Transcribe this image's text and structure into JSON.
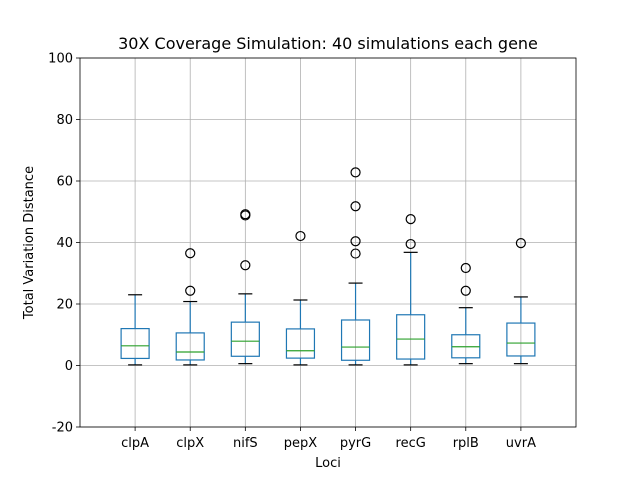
{
  "chart_data": {
    "type": "box",
    "title": "30X Coverage Simulation: 40 simulations each gene",
    "xlabel": "Loci",
    "ylabel": "Total Variation Distance",
    "ylim": [
      -20,
      100
    ],
    "yticks": [
      -20,
      0,
      20,
      40,
      60,
      80,
      100
    ],
    "grid": true,
    "colors": {
      "box": "#1f77b4",
      "median": "#2ca02c",
      "whisker": "#1f77b4",
      "cap": "#000000",
      "grid": "#b0b0b0",
      "flier": "#000000"
    },
    "categories": [
      "clpA",
      "clpX",
      "nifS",
      "pepX",
      "pyrG",
      "recG",
      "rplB",
      "uvrA"
    ],
    "boxes": [
      {
        "label": "clpA",
        "whisker_low": 0.2,
        "q1": 2.3,
        "median": 6.4,
        "q3": 12.0,
        "whisker_high": 23.0,
        "outliers": []
      },
      {
        "label": "clpX",
        "whisker_low": 0.2,
        "q1": 1.8,
        "median": 4.4,
        "q3": 10.6,
        "whisker_high": 20.8,
        "outliers": [
          24.3,
          36.5
        ]
      },
      {
        "label": "nifS",
        "whisker_low": 0.6,
        "q1": 3.0,
        "median": 7.9,
        "q3": 14.1,
        "whisker_high": 23.3,
        "outliers": [
          32.6,
          48.8,
          49.2
        ]
      },
      {
        "label": "pepX",
        "whisker_low": 0.2,
        "q1": 2.4,
        "median": 4.8,
        "q3": 11.9,
        "whisker_high": 21.3,
        "outliers": [
          42.1
        ]
      },
      {
        "label": "pyrG",
        "whisker_low": 0.2,
        "q1": 1.7,
        "median": 6.0,
        "q3": 14.8,
        "whisker_high": 26.8,
        "outliers": [
          36.4,
          40.4,
          51.8,
          62.8
        ]
      },
      {
        "label": "recG",
        "whisker_low": 0.2,
        "q1": 2.1,
        "median": 8.6,
        "q3": 16.5,
        "whisker_high": 36.8,
        "outliers": [
          39.5,
          47.6
        ]
      },
      {
        "label": "rplB",
        "whisker_low": 0.6,
        "q1": 2.5,
        "median": 6.1,
        "q3": 10.0,
        "whisker_high": 18.8,
        "outliers": [
          24.3,
          31.7
        ]
      },
      {
        "label": "uvrA",
        "whisker_low": 0.6,
        "q1": 3.1,
        "median": 7.3,
        "q3": 13.8,
        "whisker_high": 22.3,
        "outliers": [
          39.8
        ]
      }
    ]
  }
}
